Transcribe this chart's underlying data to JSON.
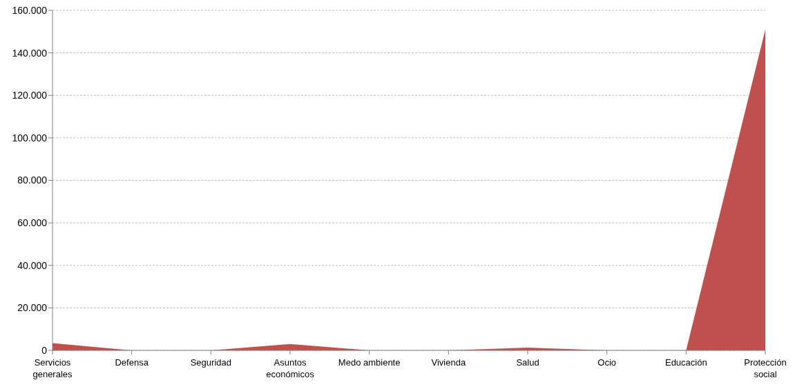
{
  "chart_data": {
    "type": "area",
    "categories": [
      "Servicios generales",
      "Defensa",
      "Seguridad",
      "Asuntos económicos",
      "Medo ambiente",
      "Vivienda",
      "Salud",
      "Ocio",
      "Educación",
      "Protección social"
    ],
    "values": [
      3400,
      0,
      0,
      3000,
      0,
      0,
      1300,
      0,
      0,
      151000
    ],
    "color": "#c0504d",
    "ylim": [
      0,
      160000
    ],
    "yticks": [
      {
        "value": 0,
        "label": "0"
      },
      {
        "value": 20000,
        "label": "20.000"
      },
      {
        "value": 40000,
        "label": "40.000"
      },
      {
        "value": 60000,
        "label": "60.000"
      },
      {
        "value": 80000,
        "label": "80.000"
      },
      {
        "value": 100000,
        "label": "100.000"
      },
      {
        "value": 120000,
        "label": "120.000"
      },
      {
        "value": 140000,
        "label": "140.000"
      },
      {
        "value": 160000,
        "label": "160.000"
      }
    ],
    "grid": "y"
  }
}
